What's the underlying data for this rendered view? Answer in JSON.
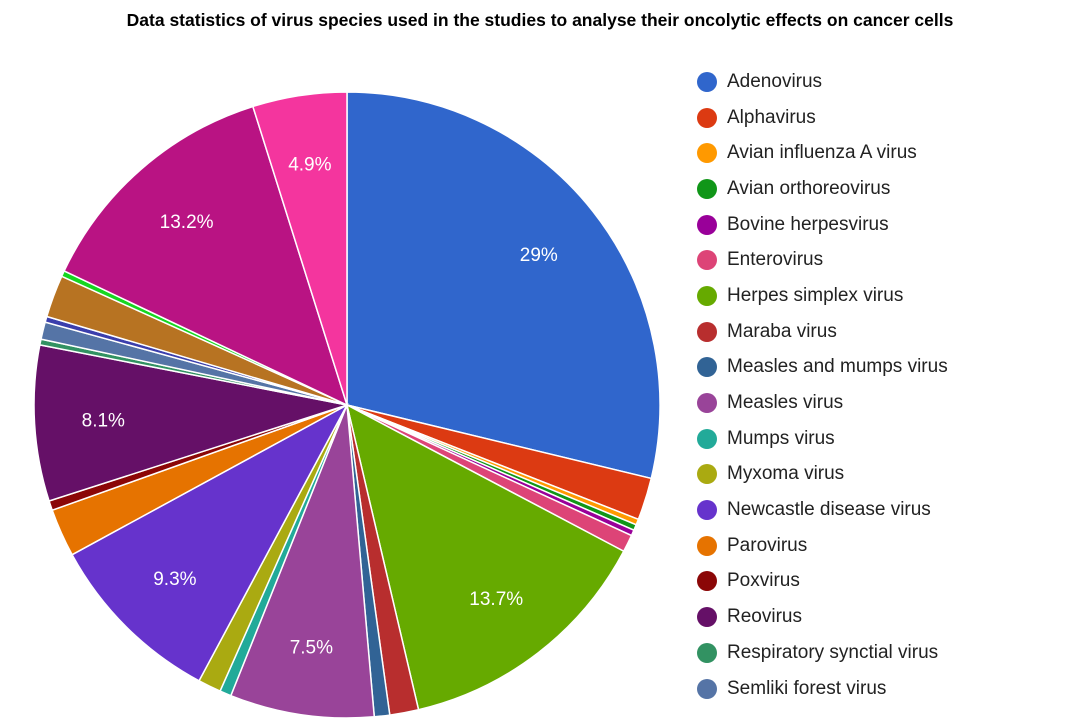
{
  "chart_data": {
    "type": "pie",
    "title": "Data statistics of virus species used in the studies to analyse their oncolytic effects on cancer cells",
    "legend_position": "right",
    "slices": [
      {
        "name": "Adenovirus",
        "value": 29,
        "color": "#3066cc",
        "label": "29%"
      },
      {
        "name": "Alphavirus",
        "value": 2.2,
        "color": "#dc3a12"
      },
      {
        "name": "Avian influenza A virus",
        "value": 0.3,
        "color": "#ff9900"
      },
      {
        "name": "Avian orthoreovirus",
        "value": 0.3,
        "color": "#109618"
      },
      {
        "name": "Bovine herpesvirus",
        "value": 0.3,
        "color": "#990099"
      },
      {
        "name": "Enterovirus",
        "value": 0.9,
        "color": "#dd4477"
      },
      {
        "name": "Herpes simplex virus",
        "value": 13.7,
        "color": "#66aa00",
        "label": "13.7%"
      },
      {
        "name": "Maraba virus",
        "value": 1.5,
        "color": "#b82e2e"
      },
      {
        "name": "Measles and mumps virus",
        "value": 0.8,
        "color": "#316395"
      },
      {
        "name": "Measles virus",
        "value": 7.5,
        "color": "#994499",
        "label": "7.5%"
      },
      {
        "name": "Mumps virus",
        "value": 0.6,
        "color": "#22aa99"
      },
      {
        "name": "Myxoma virus",
        "value": 1.2,
        "color": "#aaaa11"
      },
      {
        "name": "Newcastle disease virus",
        "value": 9.3,
        "color": "#6633cc",
        "label": "9.3%"
      },
      {
        "name": "Parovirus",
        "value": 2.5,
        "color": "#e67300"
      },
      {
        "name": "Poxvirus",
        "value": 0.5,
        "color": "#8b0707"
      },
      {
        "name": "Reovirus",
        "value": 8.1,
        "color": "#651067",
        "label": "8.1%"
      },
      {
        "name": "Respiratory synctial virus",
        "value": 0.3,
        "color": "#329262"
      },
      {
        "name": "Semliki forest virus",
        "value": 0.9,
        "color": "#5574a6"
      },
      {
        "name": "",
        "value": 0.3,
        "color": "#3b3eac"
      },
      {
        "name": "",
        "value": 2.2,
        "color": "#b77322"
      },
      {
        "name": "",
        "value": 0.3,
        "color": "#16d620"
      },
      {
        "name": "",
        "value": 13.2,
        "color": "#b91383",
        "label": "13.2%"
      },
      {
        "name": "",
        "value": 4.9,
        "color": "#f4359e",
        "label": "4.9%"
      }
    ]
  }
}
